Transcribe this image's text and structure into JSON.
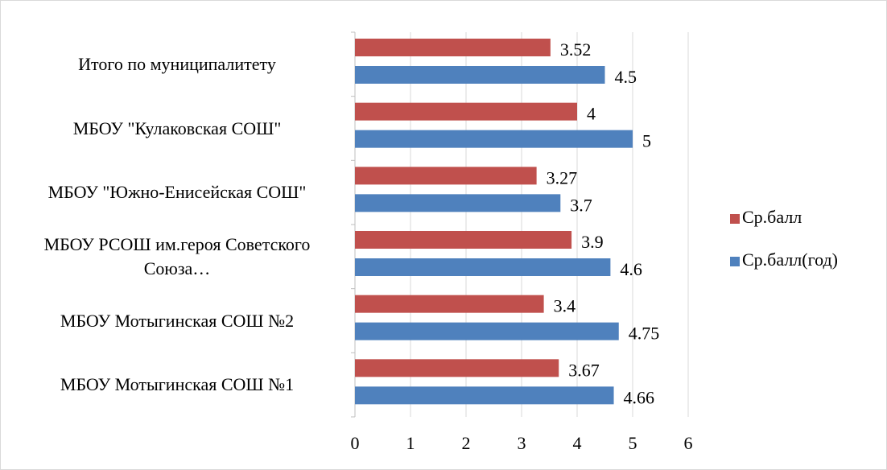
{
  "chart_data": {
    "type": "bar",
    "orientation": "horizontal",
    "categories": [
      "Итого по муниципалитету",
      "МБОУ \"Кулаковская СОШ\"",
      "МБОУ \"Южно-Енисейская СОШ\"",
      "МБОУ РСОШ им.героя Советского Союза…",
      "МБОУ Мотыгинская СОШ №2",
      "МБОУ Мотыгинская СОШ №1"
    ],
    "series": [
      {
        "name": "Ср.балл",
        "color": "#c0504d",
        "values": [
          3.52,
          4,
          3.27,
          3.9,
          3.4,
          3.67
        ]
      },
      {
        "name": "Ср.балл(год)",
        "color": "#4f81bd",
        "values": [
          4.5,
          5,
          3.7,
          4.6,
          4.75,
          4.66
        ]
      }
    ],
    "xlim": [
      0,
      6
    ],
    "xticks": [
      0,
      1,
      2,
      3,
      4,
      5,
      6
    ],
    "grid": true,
    "legend": "right"
  }
}
